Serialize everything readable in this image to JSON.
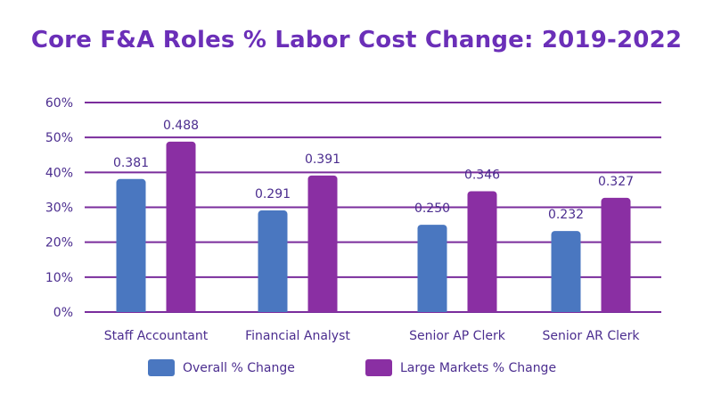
{
  "chart_data": {
    "type": "bar",
    "title": "Core F&A Roles % Labor Cost Change: 2019-2022",
    "categories": [
      "Staff Accountant",
      "Financial Analyst",
      "Senior AP Clerk",
      "Senior AR Clerk"
    ],
    "series": [
      {
        "name": "Overall % Change",
        "values": [
          0.381,
          0.291,
          0.25,
          0.232
        ],
        "labels": [
          "0.381",
          "0.291",
          "0.250",
          "0.232"
        ],
        "color": "#4a77c0"
      },
      {
        "name": "Large Markets % Change",
        "values": [
          0.488,
          0.391,
          0.346,
          0.327
        ],
        "labels": [
          "0.488",
          "0.391",
          "0.346",
          "0.327"
        ],
        "color": "#8a2fa3"
      }
    ],
    "ylim": [
      0,
      0.6
    ],
    "yticks": [
      0,
      0.1,
      0.2,
      0.3,
      0.4,
      0.5,
      0.6
    ],
    "ytick_labels": [
      "0%",
      "10%",
      "20%",
      "30%",
      "40%",
      "50%",
      "60%"
    ],
    "grid": true,
    "grid_color": "#7a2d9c",
    "text_color": "#4b2d8f",
    "legend_position": "bottom"
  }
}
